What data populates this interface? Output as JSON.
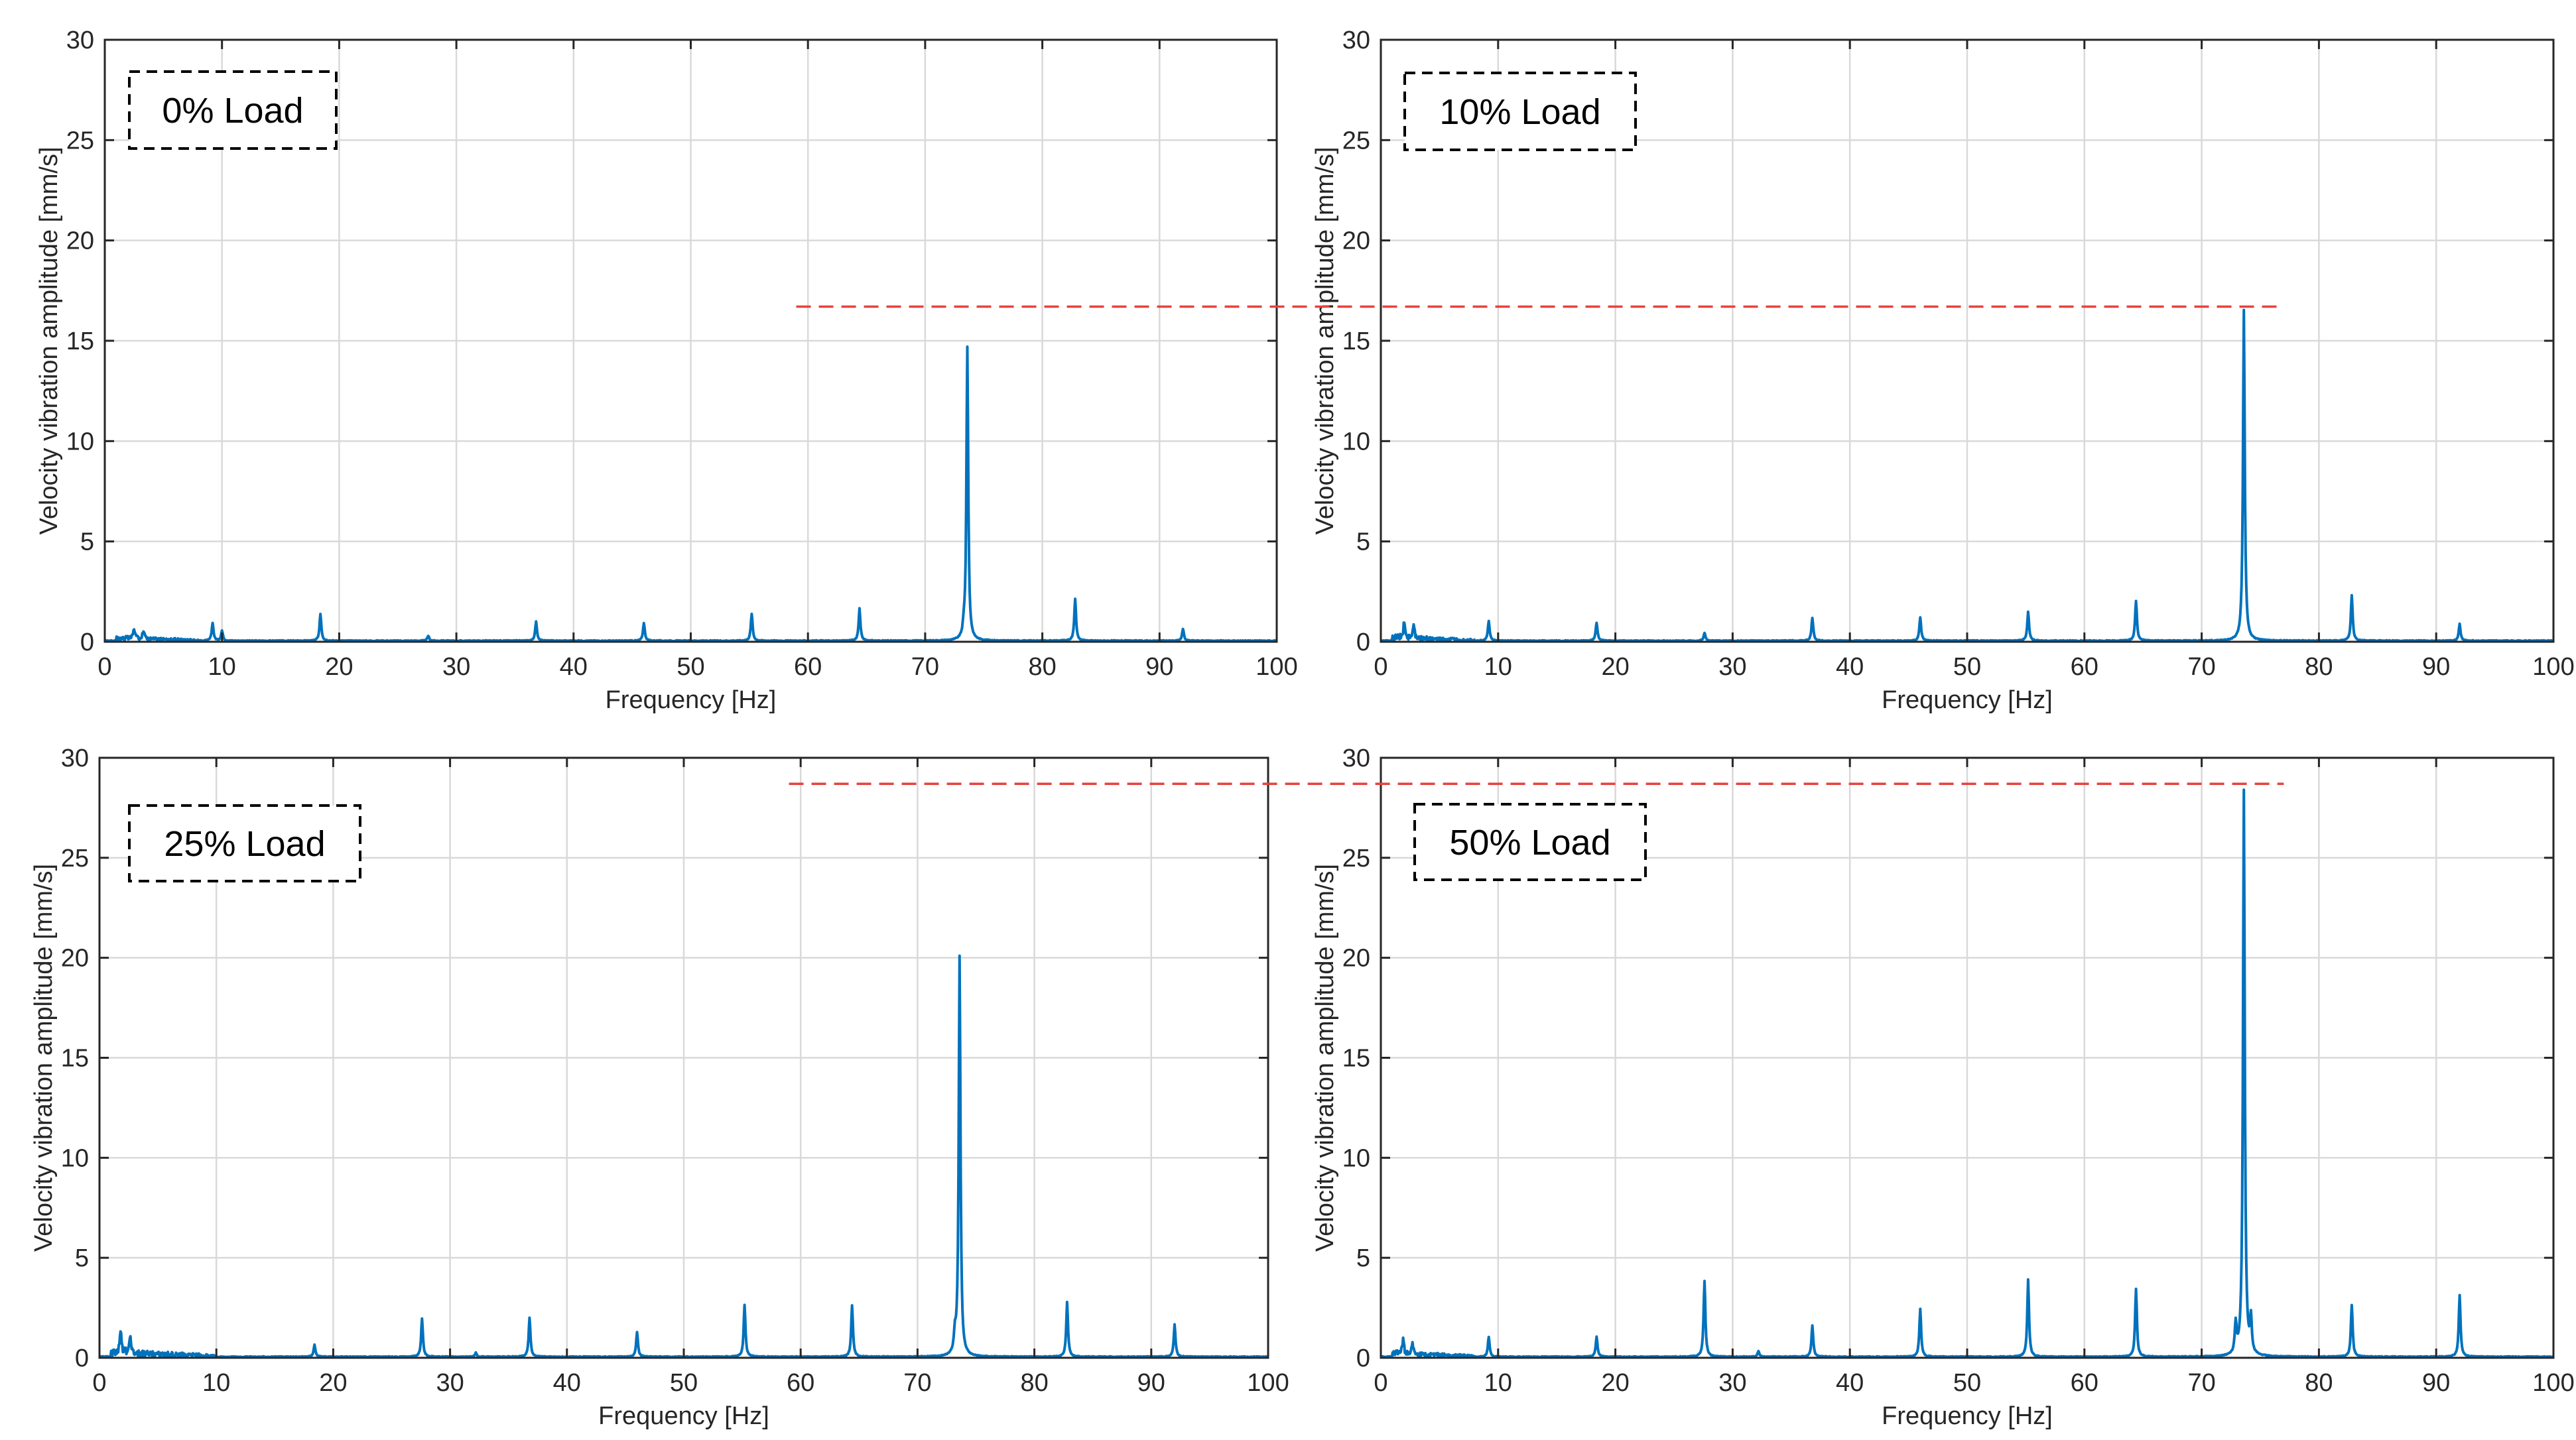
{
  "chart_data": [
    {
      "type": "line",
      "panel_label": "0% Load",
      "xlabel": "Frequency [Hz]",
      "ylabel": "Velocity vibration amplitude [mm/s]",
      "xlim": [
        0,
        100
      ],
      "ylim": [
        0,
        30
      ],
      "xticks": [
        0,
        10,
        20,
        30,
        40,
        50,
        60,
        70,
        80,
        90,
        100
      ],
      "yticks": [
        0,
        5,
        10,
        15,
        20,
        25,
        30
      ],
      "grid": true,
      "series_color": "#0072BD",
      "noise_level": 0.25,
      "noise_range": [
        1,
        8
      ],
      "peaks": [
        {
          "f": 2.5,
          "a": 0.5
        },
        {
          "f": 3.3,
          "a": 0.45
        },
        {
          "f": 9.2,
          "a": 0.9
        },
        {
          "f": 10.0,
          "a": 0.5
        },
        {
          "f": 18.4,
          "a": 1.35
        },
        {
          "f": 27.6,
          "a": 0.25
        },
        {
          "f": 36.8,
          "a": 0.95
        },
        {
          "f": 46.0,
          "a": 0.9
        },
        {
          "f": 55.2,
          "a": 1.35
        },
        {
          "f": 64.4,
          "a": 1.6
        },
        {
          "f": 73.3,
          "a": 0.4
        },
        {
          "f": 73.6,
          "a": 14.6
        },
        {
          "f": 82.8,
          "a": 2.1
        },
        {
          "f": 92.0,
          "a": 0.6
        }
      ]
    },
    {
      "type": "line",
      "panel_label": "10% Load",
      "xlabel": "Frequency [Hz]",
      "ylabel": "Velocity vibration amplitude [mm/s]",
      "xlim": [
        0,
        100
      ],
      "ylim": [
        0,
        30
      ],
      "xticks": [
        0,
        10,
        20,
        30,
        40,
        50,
        60,
        70,
        80,
        90,
        100
      ],
      "yticks": [
        0,
        5,
        10,
        15,
        20,
        25,
        30
      ],
      "grid": true,
      "series_color": "#0072BD",
      "noise_level": 0.3,
      "noise_range": [
        1,
        8
      ],
      "peaks": [
        {
          "f": 2.0,
          "a": 0.85
        },
        {
          "f": 2.8,
          "a": 0.6
        },
        {
          "f": 9.2,
          "a": 1.0
        },
        {
          "f": 18.4,
          "a": 0.9
        },
        {
          "f": 27.6,
          "a": 0.4
        },
        {
          "f": 36.8,
          "a": 1.15
        },
        {
          "f": 46.0,
          "a": 1.15
        },
        {
          "f": 55.2,
          "a": 1.45
        },
        {
          "f": 64.4,
          "a": 2.0
        },
        {
          "f": 73.6,
          "a": 16.5
        },
        {
          "f": 82.8,
          "a": 2.25
        },
        {
          "f": 92.0,
          "a": 0.85
        }
      ]
    },
    {
      "type": "line",
      "panel_label": "25% Load",
      "xlabel": "Frequency [Hz]",
      "ylabel": "Velocity vibration amplitude [mm/s]",
      "xlim": [
        0,
        100
      ],
      "ylim": [
        0,
        30
      ],
      "xticks": [
        0,
        10,
        20,
        30,
        40,
        50,
        60,
        70,
        80,
        90,
        100
      ],
      "yticks": [
        0,
        5,
        10,
        15,
        20,
        25,
        30
      ],
      "grid": true,
      "series_color": "#0072BD",
      "noise_level": 0.4,
      "noise_range": [
        1,
        10
      ],
      "peaks": [
        {
          "f": 1.8,
          "a": 1.2
        },
        {
          "f": 2.6,
          "a": 0.9
        },
        {
          "f": 18.4,
          "a": 0.6
        },
        {
          "f": 27.6,
          "a": 1.9
        },
        {
          "f": 32.2,
          "a": 0.2
        },
        {
          "f": 36.8,
          "a": 1.95
        },
        {
          "f": 46.0,
          "a": 1.25
        },
        {
          "f": 55.2,
          "a": 2.6
        },
        {
          "f": 64.4,
          "a": 2.55
        },
        {
          "f": 73.2,
          "a": 0.9
        },
        {
          "f": 73.6,
          "a": 20.0
        },
        {
          "f": 82.8,
          "a": 2.75
        },
        {
          "f": 92.0,
          "a": 1.6
        }
      ]
    },
    {
      "type": "line",
      "panel_label": "50% Load",
      "xlabel": "Frequency [Hz]",
      "ylabel": "Velocity vibration amplitude [mm/s]",
      "xlim": [
        0,
        100
      ],
      "ylim": [
        0,
        30
      ],
      "xticks": [
        0,
        10,
        20,
        30,
        40,
        50,
        60,
        70,
        80,
        90,
        100
      ],
      "yticks": [
        0,
        5,
        10,
        15,
        20,
        25,
        30
      ],
      "grid": true,
      "series_color": "#0072BD",
      "noise_level": 0.3,
      "noise_range": [
        1,
        8
      ],
      "peaks": [
        {
          "f": 1.9,
          "a": 0.7
        },
        {
          "f": 2.7,
          "a": 0.55
        },
        {
          "f": 9.2,
          "a": 1.0
        },
        {
          "f": 18.4,
          "a": 1.0
        },
        {
          "f": 27.6,
          "a": 3.8
        },
        {
          "f": 32.2,
          "a": 0.3
        },
        {
          "f": 36.8,
          "a": 1.55
        },
        {
          "f": 46.0,
          "a": 2.4
        },
        {
          "f": 55.2,
          "a": 3.85
        },
        {
          "f": 64.4,
          "a": 3.4
        },
        {
          "f": 72.9,
          "a": 1.5
        },
        {
          "f": 73.6,
          "a": 28.3
        },
        {
          "f": 74.2,
          "a": 1.7
        },
        {
          "f": 82.8,
          "a": 2.6
        },
        {
          "f": 92.0,
          "a": 3.1
        }
      ]
    }
  ],
  "reference_lines": [
    {
      "value": 16.7,
      "axis_units": "mm/s",
      "color": "#E8413C",
      "style": "dashed",
      "from_panel": 0,
      "to_panel": 1,
      "x_start": 59,
      "x_end": 77
    },
    {
      "value": 28.7,
      "axis_units": "mm/s",
      "color": "#E8413C",
      "style": "dashed",
      "from_panel": 2,
      "to_panel": 3,
      "x_start": 59,
      "x_end": 77
    }
  ]
}
